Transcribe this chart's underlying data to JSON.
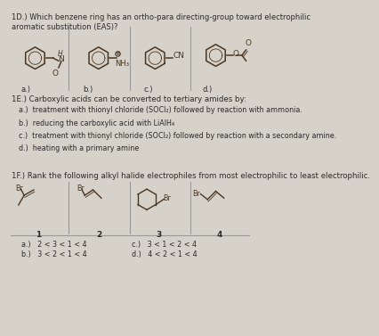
{
  "bg_color": "#d6d2ca",
  "title_1D": "1D.) Which benzene ring has an ortho-para directing-group toward electrophilic\naromatic substitution (EAS)?",
  "section_1E_title": "1E.) Carboxylic acids can be converted to tertiary amides by:",
  "section_1E_options": [
    "a.)  treatment with thionyl chloride (SOCl₂) followed by reaction with ammonia.",
    "b.)  reducing the carboxylic acid with LiAlH₄",
    "c.)  treatment with thionyl chloride (SOCl₂) followed by reaction with a secondary amine.",
    "d.)  heating with a primary amine"
  ],
  "section_1F_title": "1F.) Rank the following alkyl halide electrophiles from most electrophilic to least electrophilic.",
  "section_1F_labels": [
    "1",
    "2",
    "3",
    "4"
  ],
  "section_1F_options_left": [
    "a.)   2 < 3 < 1 < 4",
    "b.)   3 < 2 < 1 < 4"
  ],
  "section_1F_options_right": [
    "c.)   3 < 1 < 2 < 4",
    "d.)   4 < 2 < 1 < 4"
  ],
  "divider_color": "#999999",
  "text_color": "#2a2a2a",
  "struct_color": "#4a3520"
}
